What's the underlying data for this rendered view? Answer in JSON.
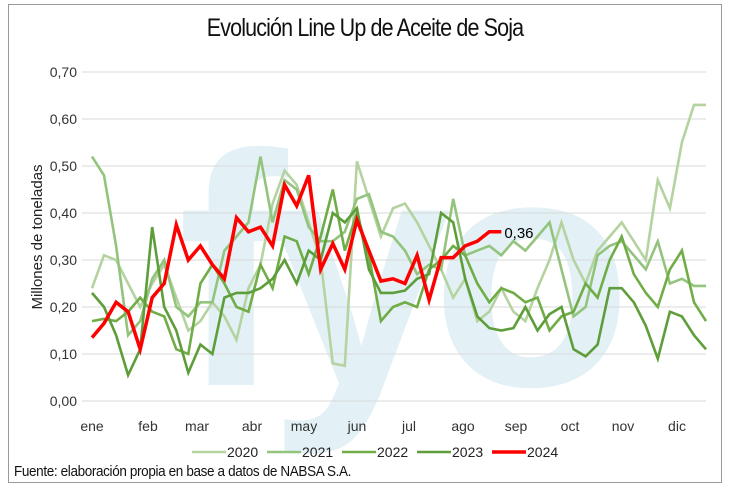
{
  "chart_data": {
    "type": "line",
    "title": "Evolución Line Up de Aceite de Soja",
    "xlabel": "",
    "ylabel": "Millones de toneladas",
    "ylim": [
      0,
      0.7
    ],
    "yticks": [
      "0,00",
      "0,10",
      "0,20",
      "0,30",
      "0,40",
      "0,50",
      "0,60",
      "0,70"
    ],
    "ytick_values": [
      0,
      0.1,
      0.2,
      0.3,
      0.4,
      0.5,
      0.6,
      0.7
    ],
    "x_categories": [
      "ene",
      "feb",
      "mar",
      "abr",
      "may",
      "jun",
      "jul",
      "ago",
      "sep",
      "oct",
      "nov",
      "dic"
    ],
    "x_unit": "week",
    "weeks": 52,
    "grid": true,
    "legend_position": "bottom",
    "series": [
      {
        "name": "2020",
        "color": "#b4d3a0",
        "values": [
          0.24,
          0.31,
          0.3,
          0.25,
          0.2,
          0.25,
          0.29,
          0.22,
          0.15,
          0.17,
          0.21,
          0.18,
          0.13,
          0.24,
          0.29,
          0.42,
          0.49,
          0.46,
          0.38,
          0.3,
          0.08,
          0.075,
          0.51,
          0.43,
          0.35,
          0.41,
          0.42,
          0.38,
          0.33,
          0.28,
          0.22,
          0.26,
          0.17,
          0.19,
          0.24,
          0.19,
          0.17,
          0.24,
          0.3,
          0.38,
          0.3,
          0.25,
          0.32,
          0.35,
          0.38,
          0.34,
          0.3,
          0.47,
          0.41,
          0.55,
          0.63,
          0.63
        ]
      },
      {
        "name": "2021",
        "color": "#93c47d",
        "values": [
          0.52,
          0.48,
          0.33,
          0.14,
          0.17,
          0.26,
          0.3,
          0.2,
          0.18,
          0.21,
          0.21,
          0.32,
          0.35,
          0.38,
          0.52,
          0.38,
          0.47,
          0.45,
          0.37,
          0.34,
          0.34,
          0.36,
          0.43,
          0.44,
          0.36,
          0.35,
          0.32,
          0.27,
          0.29,
          0.28,
          0.43,
          0.31,
          0.32,
          0.33,
          0.31,
          0.34,
          0.32,
          0.35,
          0.38,
          0.28,
          0.18,
          0.2,
          0.31,
          0.33,
          0.34,
          0.31,
          0.28,
          0.34,
          0.25,
          0.26,
          0.245,
          0.245
        ]
      },
      {
        "name": "2022",
        "color": "#70ad47",
        "values": [
          0.17,
          0.175,
          0.17,
          0.19,
          0.22,
          0.19,
          0.18,
          0.11,
          0.1,
          0.25,
          0.29,
          0.25,
          0.2,
          0.19,
          0.29,
          0.24,
          0.35,
          0.34,
          0.27,
          0.35,
          0.45,
          0.32,
          0.4,
          0.31,
          0.17,
          0.2,
          0.21,
          0.2,
          0.28,
          0.3,
          0.33,
          0.31,
          0.25,
          0.21,
          0.24,
          0.23,
          0.21,
          0.22,
          0.15,
          0.18,
          0.19,
          0.25,
          0.22,
          0.3,
          0.35,
          0.27,
          0.23,
          0.2,
          0.28,
          0.32,
          0.21,
          0.17
        ]
      },
      {
        "name": "2023",
        "color": "#5e9e3a",
        "values": [
          0.23,
          0.2,
          0.14,
          0.055,
          0.11,
          0.37,
          0.2,
          0.15,
          0.06,
          0.12,
          0.1,
          0.22,
          0.23,
          0.23,
          0.24,
          0.26,
          0.3,
          0.25,
          0.32,
          0.3,
          0.4,
          0.38,
          0.41,
          0.28,
          0.23,
          0.23,
          0.235,
          0.26,
          0.27,
          0.4,
          0.38,
          0.26,
          0.18,
          0.155,
          0.15,
          0.155,
          0.2,
          0.15,
          0.185,
          0.2,
          0.11,
          0.095,
          0.12,
          0.24,
          0.24,
          0.21,
          0.16,
          0.09,
          0.19,
          0.18,
          0.14,
          0.11
        ]
      },
      {
        "name": "2024",
        "color": "#ff0000",
        "values": [
          0.135,
          0.165,
          0.21,
          0.19,
          0.11,
          0.22,
          0.25,
          0.375,
          0.3,
          0.33,
          0.29,
          0.26,
          0.39,
          0.36,
          0.37,
          0.33,
          0.46,
          0.415,
          0.48,
          0.28,
          0.335,
          0.28,
          0.385,
          0.32,
          0.255,
          0.26,
          0.25,
          0.31,
          0.215,
          0.305,
          0.305,
          0.33,
          0.34,
          0.36,
          0.36
        ]
      }
    ],
    "annotations": [
      {
        "series": "2024",
        "point": "last",
        "text": "0,36"
      }
    ]
  },
  "source_note": "Fuente: elaboración propia en base a datos de NABSA S.A.",
  "watermark": "fyo"
}
